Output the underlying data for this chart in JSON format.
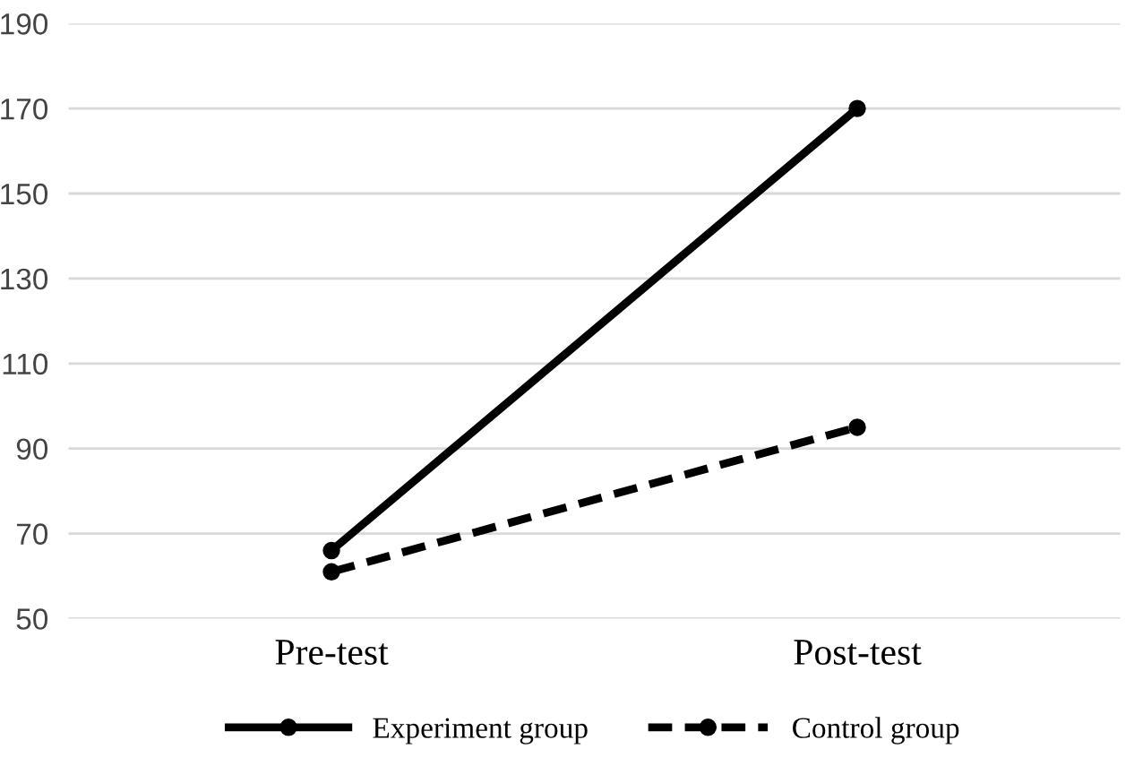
{
  "chart_data": {
    "type": "line",
    "categories": [
      "Pre-test",
      "Post-test"
    ],
    "series": [
      {
        "name": "Experiment group",
        "color": "#000000",
        "values": [
          66,
          170
        ],
        "line_style": "solid"
      },
      {
        "name": "Control group",
        "color": "#000000",
        "values": [
          61,
          95
        ],
        "line_style": "dashed"
      }
    ],
    "ylim": [
      50,
      190
    ],
    "yticks": [
      50,
      70,
      90,
      110,
      130,
      150,
      170,
      190
    ],
    "grid": "y",
    "legend": "bottom",
    "marker": "circle"
  }
}
